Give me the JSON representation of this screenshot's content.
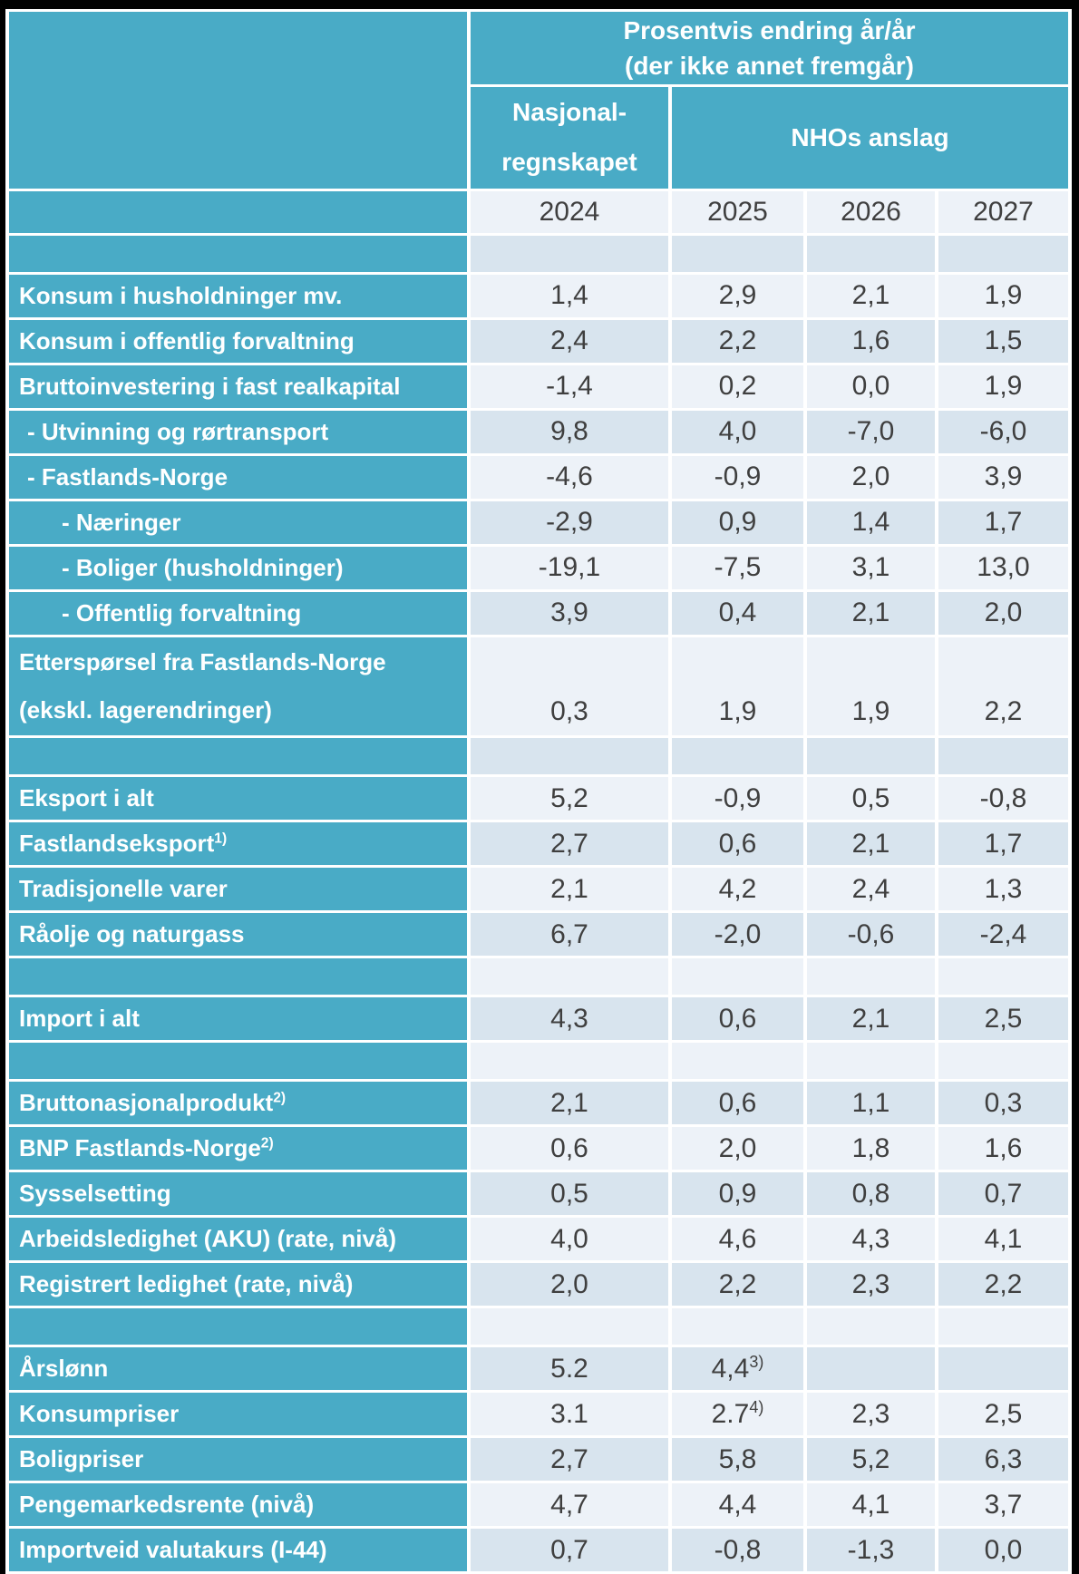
{
  "chart_data": {
    "type": "table",
    "title": "Prosentvis endring år/år\n(der ikke annet fremgår)",
    "column_group_left": "Nasjonal-\nregnskapet",
    "column_group_right": "NHOs anslag",
    "columns": [
      "2024",
      "2025",
      "2026",
      "2027"
    ],
    "rows": [
      {
        "type": "spacer"
      },
      {
        "label": "Konsum i husholdninger mv.",
        "indent": 0,
        "values": [
          "1,4",
          "2,9",
          "2,1",
          "1,9"
        ]
      },
      {
        "label": "Konsum i offentlig forvaltning",
        "indent": 0,
        "values": [
          "2,4",
          "2,2",
          "1,6",
          "1,5"
        ]
      },
      {
        "label": "Bruttoinvestering i fast realkapital",
        "indent": 0,
        "values": [
          "-1,4",
          "0,2",
          "0,0",
          "1,9"
        ]
      },
      {
        "label": "- Utvinning og rørtransport",
        "indent": 1,
        "values": [
          "9,8",
          "4,0",
          "-7,0",
          "-6,0"
        ]
      },
      {
        "label": "- Fastlands-Norge",
        "indent": 1,
        "values": [
          "-4,6",
          "-0,9",
          "2,0",
          "3,9"
        ]
      },
      {
        "label": "- Næringer",
        "indent": 2,
        "values": [
          "-2,9",
          "0,9",
          "1,4",
          "1,7"
        ]
      },
      {
        "label": "- Boliger (husholdninger)",
        "indent": 2,
        "values": [
          "-19,1",
          "-7,5",
          "3,1",
          "13,0"
        ]
      },
      {
        "label": "- Offentlig forvaltning",
        "indent": 2,
        "values": [
          "3,9",
          "0,4",
          "2,1",
          "2,0"
        ]
      },
      {
        "type": "tall",
        "label": "Etterspørsel fra Fastlands-Norge\n(ekskl. lagerendringer)",
        "indent": 0,
        "values": [
          "0,3",
          "1,9",
          "1,9",
          "2,2"
        ]
      },
      {
        "type": "spacer"
      },
      {
        "label": "Eksport i alt",
        "indent": 0,
        "values": [
          "5,2",
          "-0,9",
          "0,5",
          "-0,8"
        ]
      },
      {
        "label": "Fastlandseksport",
        "label_sup": "1)",
        "indent": 0,
        "values": [
          "2,7",
          "0,6",
          "2,1",
          "1,7"
        ]
      },
      {
        "label": "Tradisjonelle varer",
        "indent": 0,
        "values": [
          "2,1",
          "4,2",
          "2,4",
          "1,3"
        ]
      },
      {
        "label": "Råolje og naturgass",
        "indent": 0,
        "values": [
          "6,7",
          "-2,0",
          "-0,6",
          "-2,4"
        ]
      },
      {
        "type": "spacer"
      },
      {
        "label": "Import i alt",
        "indent": 0,
        "values": [
          "4,3",
          "0,6",
          "2,1",
          "2,5"
        ]
      },
      {
        "type": "spacer"
      },
      {
        "label": "Bruttonasjonalprodukt",
        "label_sup": "2)",
        "indent": 0,
        "values": [
          "2,1",
          "0,6",
          "1,1",
          "0,3"
        ]
      },
      {
        "label": "BNP Fastlands-Norge",
        "label_sup": "2)",
        "indent": 0,
        "values": [
          "0,6",
          "2,0",
          "1,8",
          "1,6"
        ]
      },
      {
        "label": "Sysselsetting",
        "indent": 0,
        "values": [
          "0,5",
          "0,9",
          "0,8",
          "0,7"
        ]
      },
      {
        "label": "Arbeidsledighet (AKU) (rate, nivå)",
        "indent": 0,
        "values": [
          "4,0",
          "4,6",
          "4,3",
          "4,1"
        ]
      },
      {
        "label": "Registrert ledighet (rate, nivå)",
        "indent": 0,
        "values": [
          "2,0",
          "2,2",
          "2,3",
          "2,2"
        ]
      },
      {
        "type": "spacer"
      },
      {
        "label": "Årslønn",
        "indent": 0,
        "values": [
          "5.2",
          {
            "v": "4,4",
            "sup": "3)"
          },
          "",
          ""
        ]
      },
      {
        "label": "Konsumpriser",
        "indent": 0,
        "values": [
          "3.1",
          {
            "v": "2.7",
            "sup": "4)"
          },
          "2,3",
          "2,5"
        ]
      },
      {
        "label": "Boligpriser",
        "indent": 0,
        "values": [
          "2,7",
          "5,8",
          "5,2",
          "6,3"
        ]
      },
      {
        "label": "Pengemarkedsrente (nivå)",
        "indent": 0,
        "values": [
          "4,7",
          "4,4",
          "4,1",
          "3,7"
        ]
      },
      {
        "label": "Importveid valutakurs (I-44)",
        "indent": 0,
        "values": [
          "0,7",
          "-0,8",
          "-1,3",
          "0,0"
        ]
      }
    ],
    "layout": {
      "legend": "none",
      "grid": "white gridline gaps between cells"
    }
  },
  "colors": {
    "header_teal": "#49ABC6",
    "row_light": "#EDF2F8",
    "row_dark": "#D8E4EE",
    "value_text": "#3F3F3F",
    "label_text": "#FFFFFF",
    "gridline": "#FFFFFF",
    "frame": "#000000"
  }
}
